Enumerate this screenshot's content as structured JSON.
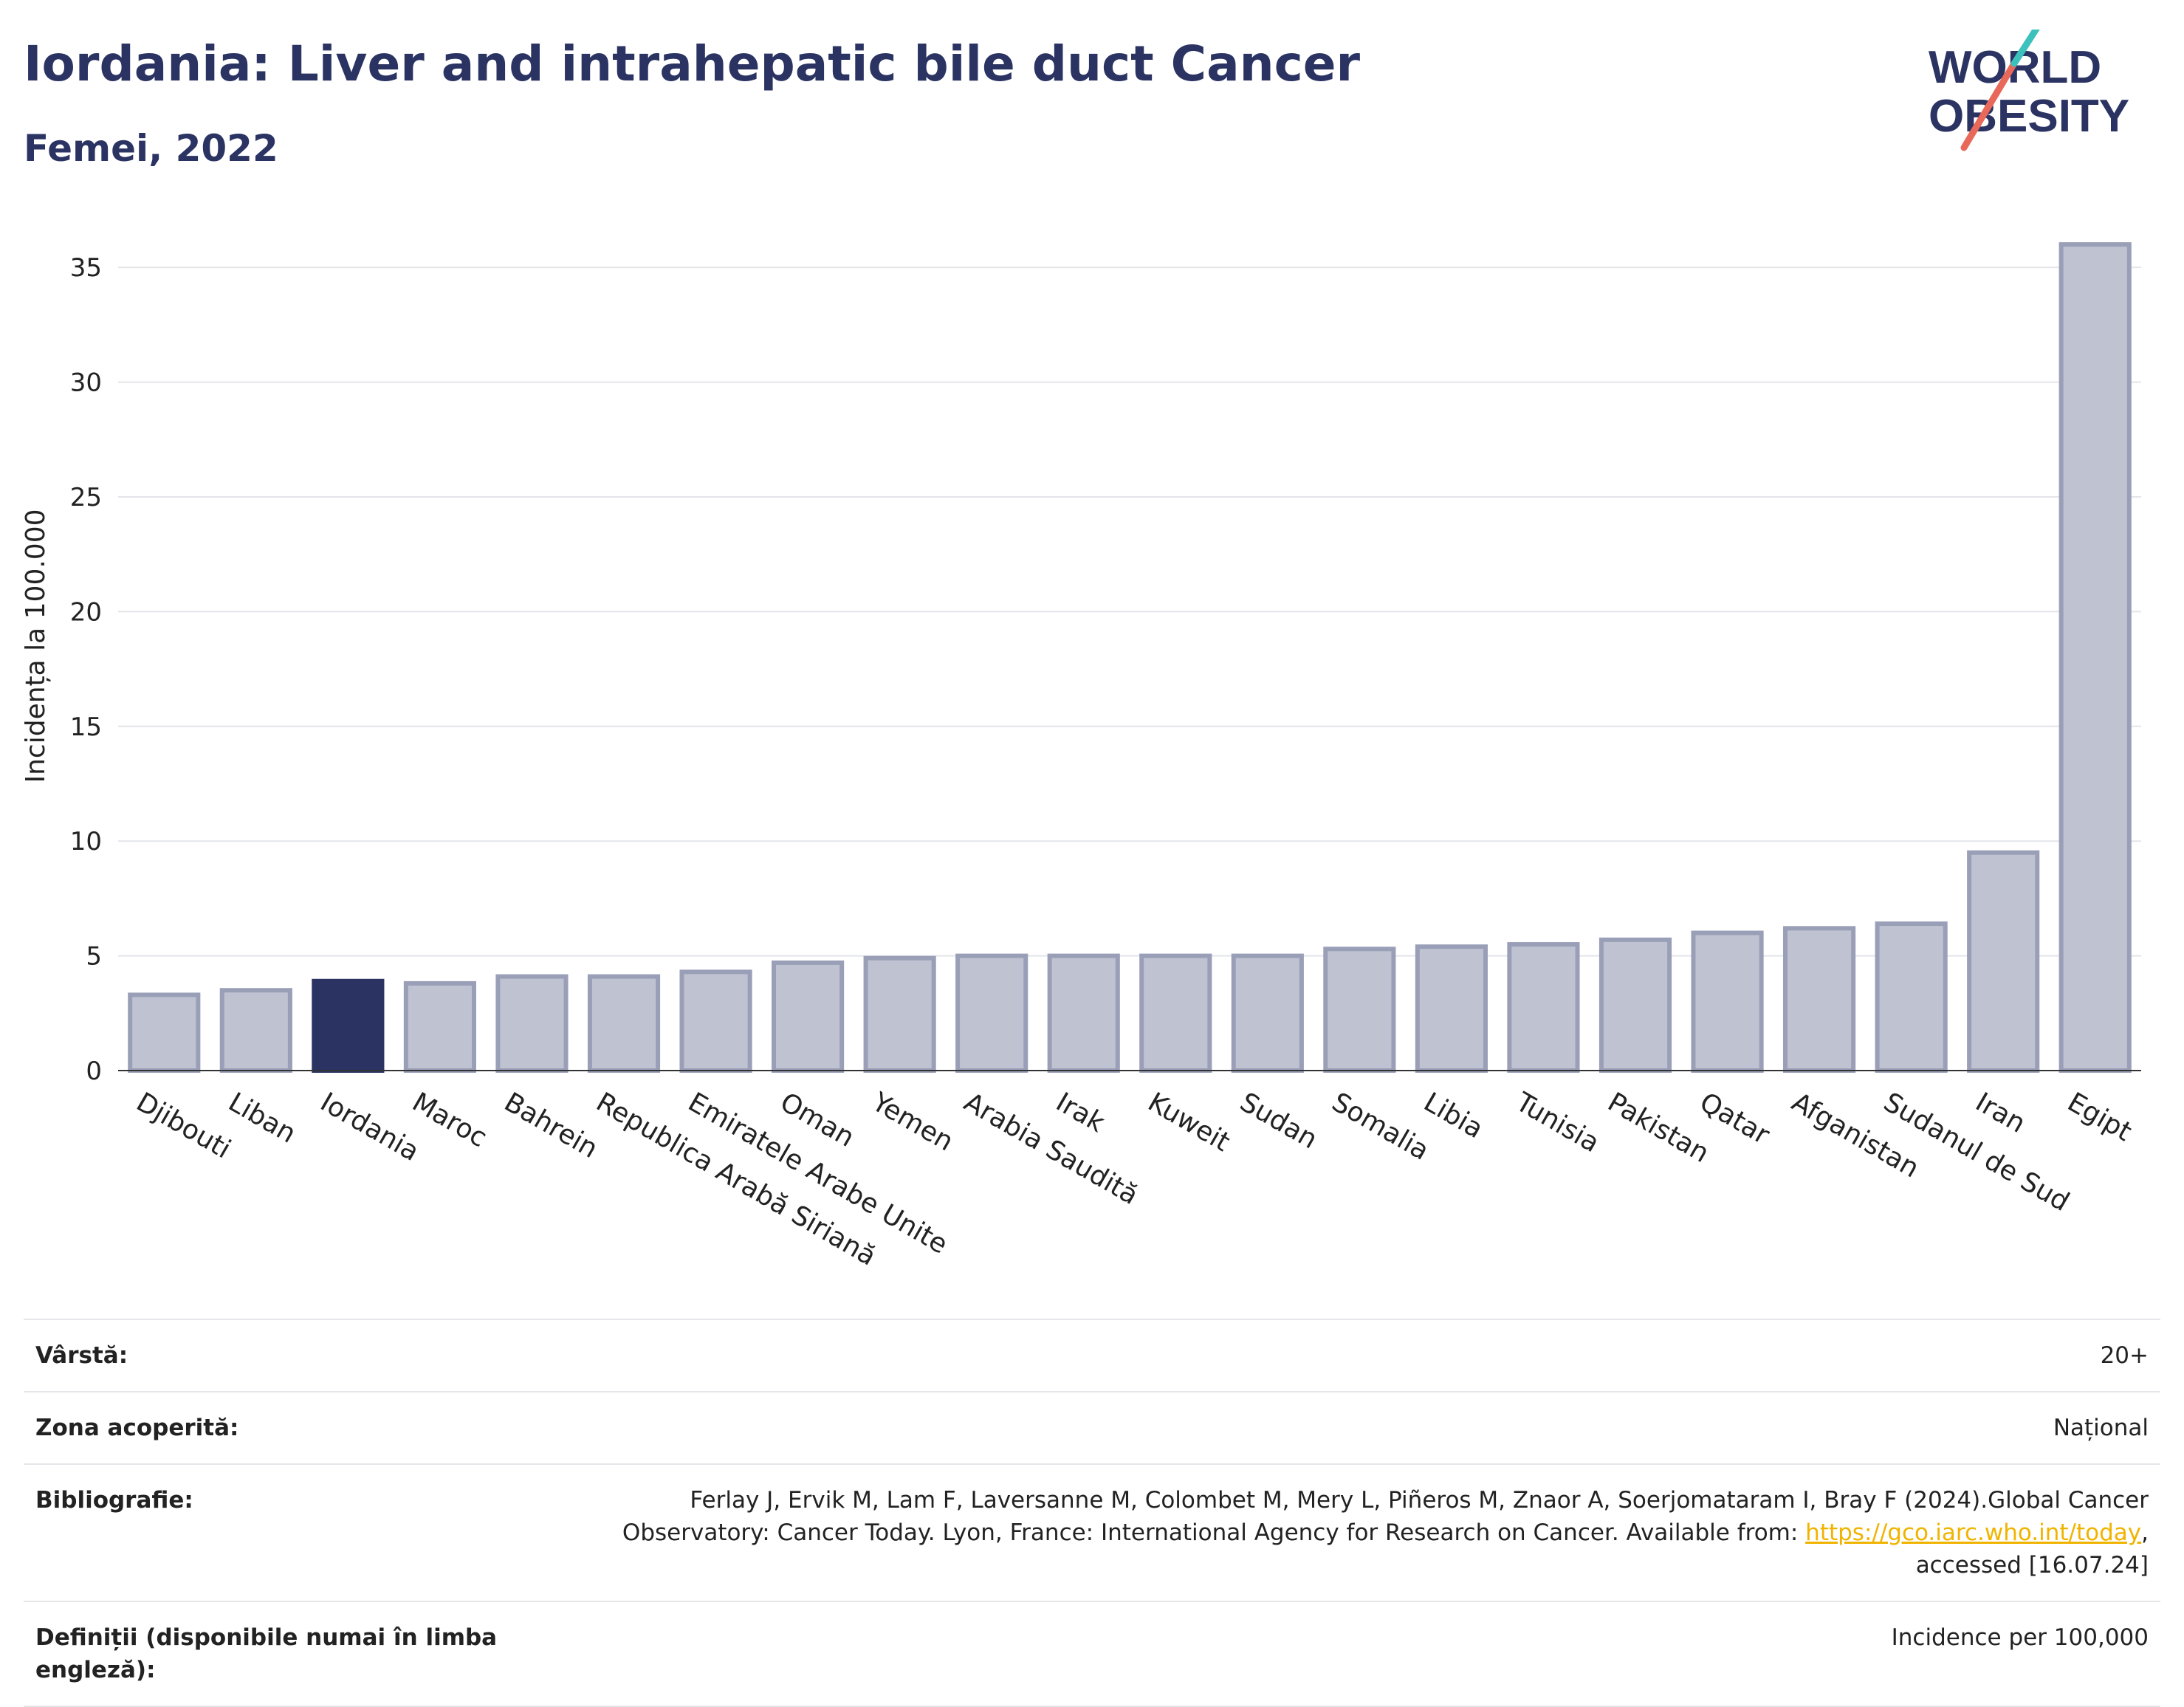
{
  "header": {
    "title": "Iordania: Liver and intrahepatic bile duct Cancer",
    "subtitle": "Femei, 2022"
  },
  "logo": {
    "line1": "WORLD",
    "line2": "OBESITY"
  },
  "chart_data": {
    "type": "bar",
    "title": "Iordania: Liver and intrahepatic bile duct Cancer",
    "subtitle": "Femei, 2022",
    "xlabel": "",
    "ylabel": "Incidența la 100.000",
    "ylim": [
      0,
      37
    ],
    "yticks": [
      0,
      5,
      10,
      15,
      20,
      25,
      30,
      35
    ],
    "grid": true,
    "highlight": "Iordania",
    "colors": {
      "default": "#bfc2d0",
      "default_edge": "#9a9fb8",
      "highlight": "#2a3362"
    },
    "categories": [
      "Djibouti",
      "Liban",
      "Iordania",
      "Maroc",
      "Bahrein",
      "Republica Arabă Siriană",
      "Emiratele Arabe Unite",
      "Oman",
      "Yemen",
      "Arabia Saudită",
      "Irak",
      "Kuweit",
      "Sudan",
      "Somalia",
      "Libia",
      "Tunisia",
      "Pakistan",
      "Qatar",
      "Afganistan",
      "Sudanul de Sud",
      "Iran",
      "Egipt"
    ],
    "values": [
      3.3,
      3.5,
      3.9,
      3.8,
      4.1,
      4.1,
      4.3,
      4.7,
      4.9,
      5.0,
      5.0,
      5.0,
      5.0,
      5.3,
      5.4,
      5.5,
      5.7,
      6.0,
      6.2,
      6.4,
      9.5,
      36.0
    ]
  },
  "meta": [
    {
      "label": "Vârstă:",
      "value": "20+"
    },
    {
      "label": "Zona acoperită:",
      "value": "Național"
    },
    {
      "label": "Bibliografie:",
      "value_before": "Ferlay J, Ervik M, Lam F, Laversanne M, Colombet M, Mery L, Piñeros M, Znaor A, Soerjomataram I, Bray F (2024).Global Cancer Observatory: Cancer Today. Lyon, France: International Agency for Research on Cancer. Available from: ",
      "link": "https://gco.iarc.who.int/today",
      "value_after": ", accessed [16.07.24]"
    },
    {
      "label": "Definiții (disponibile numai în limba engleză):",
      "value": "Incidence per 100,000"
    }
  ]
}
